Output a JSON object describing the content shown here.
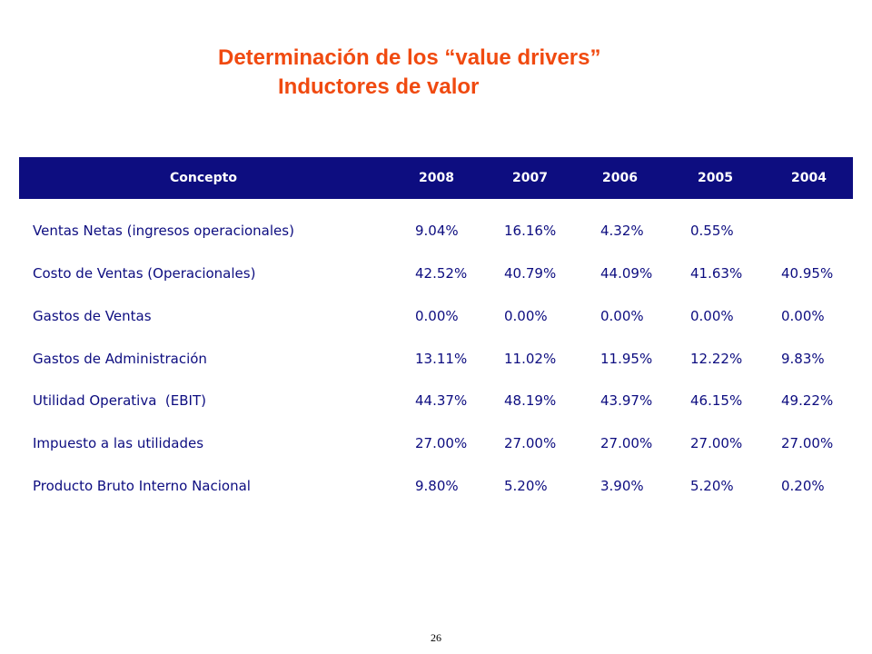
{
  "title": {
    "line1": "Determinación de los “value drivers”",
    "line2": "Inductores de valor"
  },
  "table": {
    "headers": [
      "Concepto",
      "2008",
      "2007",
      "2006",
      "2005",
      "2004"
    ],
    "rows": [
      {
        "concept": "Ventas Netas (ingresos operacionales)",
        "values": [
          "9.04%",
          "16.16%",
          "4.32%",
          "0.55%",
          ""
        ]
      },
      {
        "concept": "Costo de Ventas (Operacionales)",
        "values": [
          "42.52%",
          "40.79%",
          "44.09%",
          "41.63%",
          "40.95%"
        ]
      },
      {
        "concept": "Gastos de Ventas",
        "values": [
          "0.00%",
          "0.00%",
          "0.00%",
          "0.00%",
          "0.00%"
        ]
      },
      {
        "concept": "Gastos de Administración",
        "values": [
          "13.11%",
          "11.02%",
          "11.95%",
          "12.22%",
          "9.83%"
        ]
      },
      {
        "concept": "Utilidad Operativa  (EBIT)",
        "values": [
          "44.37%",
          "48.19%",
          "43.97%",
          "46.15%",
          "49.22%"
        ]
      },
      {
        "concept": "Impuesto a las utilidades",
        "values": [
          "27.00%",
          "27.00%",
          "27.00%",
          "27.00%",
          "27.00%"
        ]
      },
      {
        "concept": "Producto Bruto Interno Nacional",
        "values": [
          "9.80%",
          "5.20%",
          "3.90%",
          "5.20%",
          "0.20%"
        ]
      }
    ]
  },
  "page_number": "26",
  "colors": {
    "title": "#f04a10",
    "header_bg": "#0d0d80",
    "header_text": "#ffffff",
    "cell_text": "#0d0d80"
  }
}
